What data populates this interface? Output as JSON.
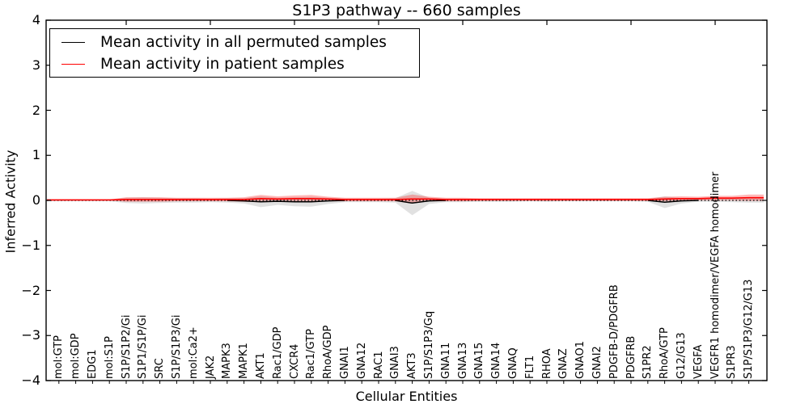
{
  "title": "S1P3 pathway -- 660 samples",
  "legend": {
    "entries": [
      {
        "label": "Mean activity in all permuted samples",
        "color": "#000000"
      },
      {
        "label": "Mean activity in patient samples",
        "color": "#ff0000"
      }
    ]
  },
  "chart_data": {
    "type": "line",
    "title": "S1P3 pathway -- 660 samples",
    "xlabel": "Cellular Entities",
    "ylabel": "Inferred Activity",
    "ylim": [
      -4,
      4
    ],
    "yticks": [
      "4",
      "3",
      "2",
      "1",
      "0",
      "−1",
      "−2",
      "−3",
      "−4"
    ],
    "grid": false,
    "legend_position": "upper left",
    "zero_line": "dotted",
    "categories": [
      "mol:GTP",
      "mol:GDP",
      "EDG1",
      "mol:S1P",
      "S1P/S1P2/Gi",
      "S1P1/S1P/Gi",
      "SRC",
      "S1P/S1P3/Gi",
      "mol:Ca2+",
      "JAK2",
      "MAPK3",
      "MAPK1",
      "AKT1",
      "Rac1/GDP",
      "CXCR4",
      "Rac1/GTP",
      "RhoA/GDP",
      "GNAI1",
      "GNA12",
      "RAC1",
      "GNAI3",
      "AKT3",
      "S1P/S1P3/Gq",
      "GNA11",
      "GNA13",
      "GNA15",
      "GNA14",
      "GNAQ",
      "FLT1",
      "RHOA",
      "GNAZ",
      "GNAO1",
      "GNAI2",
      "PDGFB-D/PDGFRB",
      "PDGFRB",
      "S1PR2",
      "RhoA/GTP",
      "G12/G13",
      "VEGFA",
      "VEGFR1 homodimer/VEGFA homodimer",
      "S1PR3",
      "S1P/S1P3/G12/G13"
    ],
    "series": [
      {
        "name": "Mean activity in all permuted samples",
        "color": "#000000",
        "line_style": "dotted",
        "values": [
          0,
          0,
          0,
          0,
          0,
          0,
          0,
          0,
          0,
          0,
          0,
          -0.01,
          -0.03,
          -0.02,
          -0.03,
          -0.03,
          -0.01,
          0,
          0,
          0,
          0,
          -0.06,
          -0.01,
          0,
          0,
          0,
          0,
          0,
          0,
          0,
          0,
          0,
          0,
          0,
          0,
          0,
          -0.04,
          -0.01,
          0,
          0,
          0,
          0
        ],
        "band_std": [
          0.02,
          0.02,
          0.02,
          0.02,
          0.06,
          0.07,
          0.06,
          0.05,
          0.05,
          0.04,
          0.05,
          0.06,
          0.12,
          0.08,
          0.1,
          0.11,
          0.07,
          0.04,
          0.04,
          0.04,
          0.05,
          0.27,
          0.07,
          0.04,
          0.04,
          0.03,
          0.03,
          0.03,
          0.02,
          0.03,
          0.02,
          0.02,
          0.02,
          0.02,
          0.02,
          0.03,
          0.13,
          0.06,
          0.03,
          0.03,
          0.04,
          0.05
        ],
        "band_color": "#c8c8c8",
        "band_opacity": 0.55
      },
      {
        "name": "Mean activity in patient samples",
        "color": "#ff0000",
        "line_style": "solid",
        "values": [
          0.01,
          0.01,
          0.01,
          0.01,
          0.02,
          0.02,
          0.02,
          0.02,
          0.02,
          0.02,
          0.02,
          0.02,
          0.04,
          0.03,
          0.04,
          0.04,
          0.03,
          0.02,
          0.02,
          0.02,
          0.02,
          0.03,
          0.03,
          0.02,
          0.02,
          0.02,
          0.02,
          0.02,
          0.02,
          0.02,
          0.02,
          0.02,
          0.02,
          0.02,
          0.02,
          0.02,
          0.03,
          0.04,
          0.04,
          0.05,
          0.05,
          0.06
        ],
        "band_std": [
          0.01,
          0.01,
          0.01,
          0.01,
          0.05,
          0.05,
          0.05,
          0.04,
          0.04,
          0.04,
          0.04,
          0.05,
          0.08,
          0.06,
          0.07,
          0.08,
          0.05,
          0.04,
          0.04,
          0.04,
          0.04,
          0.1,
          0.05,
          0.04,
          0.04,
          0.03,
          0.03,
          0.03,
          0.03,
          0.03,
          0.03,
          0.03,
          0.03,
          0.03,
          0.03,
          0.03,
          0.05,
          0.05,
          0.04,
          0.05,
          0.05,
          0.07
        ],
        "band_color": "#ff0000",
        "band_opacity": 0.28
      }
    ]
  }
}
